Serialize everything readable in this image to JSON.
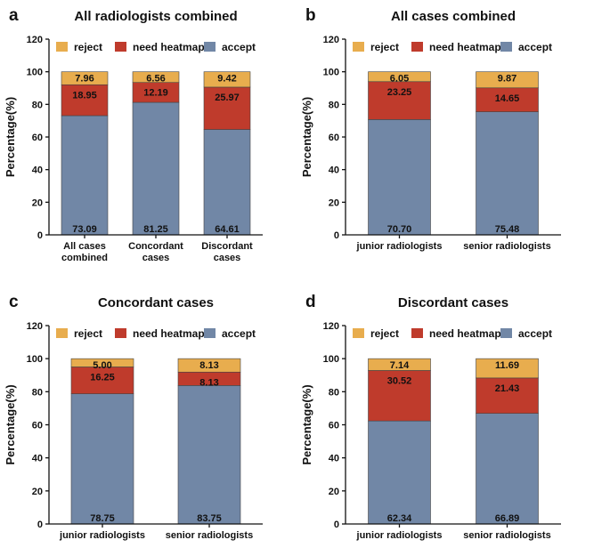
{
  "colors": {
    "reject": "#e8ad4e",
    "need_heatmaps": "#bf3b2c",
    "accept": "#7187a6",
    "bar_edge": "#444444"
  },
  "chart_data": [
    {
      "panel": "a",
      "type": "bar",
      "stacked": true,
      "title": "All radiologists combined",
      "ylabel": "Percentage(%)",
      "xlabel": "",
      "ylim": [
        0,
        120
      ],
      "yticks": [
        "0",
        "20",
        "40",
        "60",
        "80",
        "100",
        "120"
      ],
      "legend_placement": "top",
      "legend": [
        "reject",
        "need heatmaps",
        "accept"
      ],
      "categories": [
        [
          "All cases",
          "combined"
        ],
        [
          "Concordant",
          "cases"
        ],
        [
          "Discordant",
          "cases"
        ]
      ],
      "series": [
        {
          "name": "accept",
          "values": [
            73.09,
            81.25,
            64.61
          ],
          "labels": [
            "73.09",
            "81.25",
            "64.61"
          ]
        },
        {
          "name": "need heatmaps",
          "values": [
            18.95,
            12.19,
            25.97
          ],
          "labels": [
            "18.95",
            "12.19",
            "25.97"
          ]
        },
        {
          "name": "reject",
          "values": [
            7.96,
            6.56,
            9.42
          ],
          "labels": [
            "7.96",
            "6.56",
            "9.42"
          ]
        }
      ]
    },
    {
      "panel": "b",
      "type": "bar",
      "stacked": true,
      "title": "All cases combined",
      "ylabel": "Percentage(%)",
      "xlabel": "",
      "ylim": [
        0,
        120
      ],
      "yticks": [
        "0",
        "20",
        "40",
        "60",
        "80",
        "100",
        "120"
      ],
      "legend_placement": "top",
      "legend": [
        "reject",
        "need heatmaps",
        "accept"
      ],
      "categories": [
        [
          "junior radiologists"
        ],
        [
          "senior radiologists"
        ]
      ],
      "series": [
        {
          "name": "accept",
          "values": [
            70.7,
            75.48
          ],
          "labels": [
            "70.70",
            "75.48"
          ]
        },
        {
          "name": "need heatmaps",
          "values": [
            23.25,
            14.65
          ],
          "labels": [
            "23.25",
            "14.65"
          ]
        },
        {
          "name": "reject",
          "values": [
            6.05,
            9.87
          ],
          "labels": [
            "6.05",
            "9.87"
          ]
        }
      ]
    },
    {
      "panel": "c",
      "type": "bar",
      "stacked": true,
      "title": "Concordant cases",
      "ylabel": "Percentage(%)",
      "xlabel": "",
      "ylim": [
        0,
        120
      ],
      "yticks": [
        "0",
        "20",
        "40",
        "60",
        "80",
        "100",
        "120"
      ],
      "legend_placement": "top",
      "legend": [
        "reject",
        "need heatmaps",
        "accept"
      ],
      "categories": [
        [
          "junior radiologists"
        ],
        [
          "senior radiologists"
        ]
      ],
      "series": [
        {
          "name": "accept",
          "values": [
            78.75,
            83.75
          ],
          "labels": [
            "78.75",
            "83.75"
          ]
        },
        {
          "name": "need heatmaps",
          "values": [
            16.25,
            8.13
          ],
          "labels": [
            "16.25",
            "8.13"
          ]
        },
        {
          "name": "reject",
          "values": [
            5.0,
            8.13
          ],
          "labels": [
            "5.00",
            "8.13"
          ]
        }
      ]
    },
    {
      "panel": "d",
      "type": "bar",
      "stacked": true,
      "title": "Discordant cases",
      "ylabel": "Percentage(%)",
      "xlabel": "",
      "ylim": [
        0,
        120
      ],
      "yticks": [
        "0",
        "20",
        "40",
        "60",
        "80",
        "100",
        "120"
      ],
      "legend_placement": "top",
      "legend": [
        "reject",
        "need heatmaps",
        "accept"
      ],
      "categories": [
        [
          "junior radiologists"
        ],
        [
          "senior radiologists"
        ]
      ],
      "series": [
        {
          "name": "accept",
          "values": [
            62.34,
            66.89
          ],
          "labels": [
            "62.34",
            "66.89"
          ]
        },
        {
          "name": "need heatmaps",
          "values": [
            30.52,
            21.43
          ],
          "labels": [
            "30.52",
            "21.43"
          ]
        },
        {
          "name": "reject",
          "values": [
            7.14,
            11.69
          ],
          "labels": [
            "7.14",
            "11.69"
          ]
        }
      ]
    }
  ]
}
